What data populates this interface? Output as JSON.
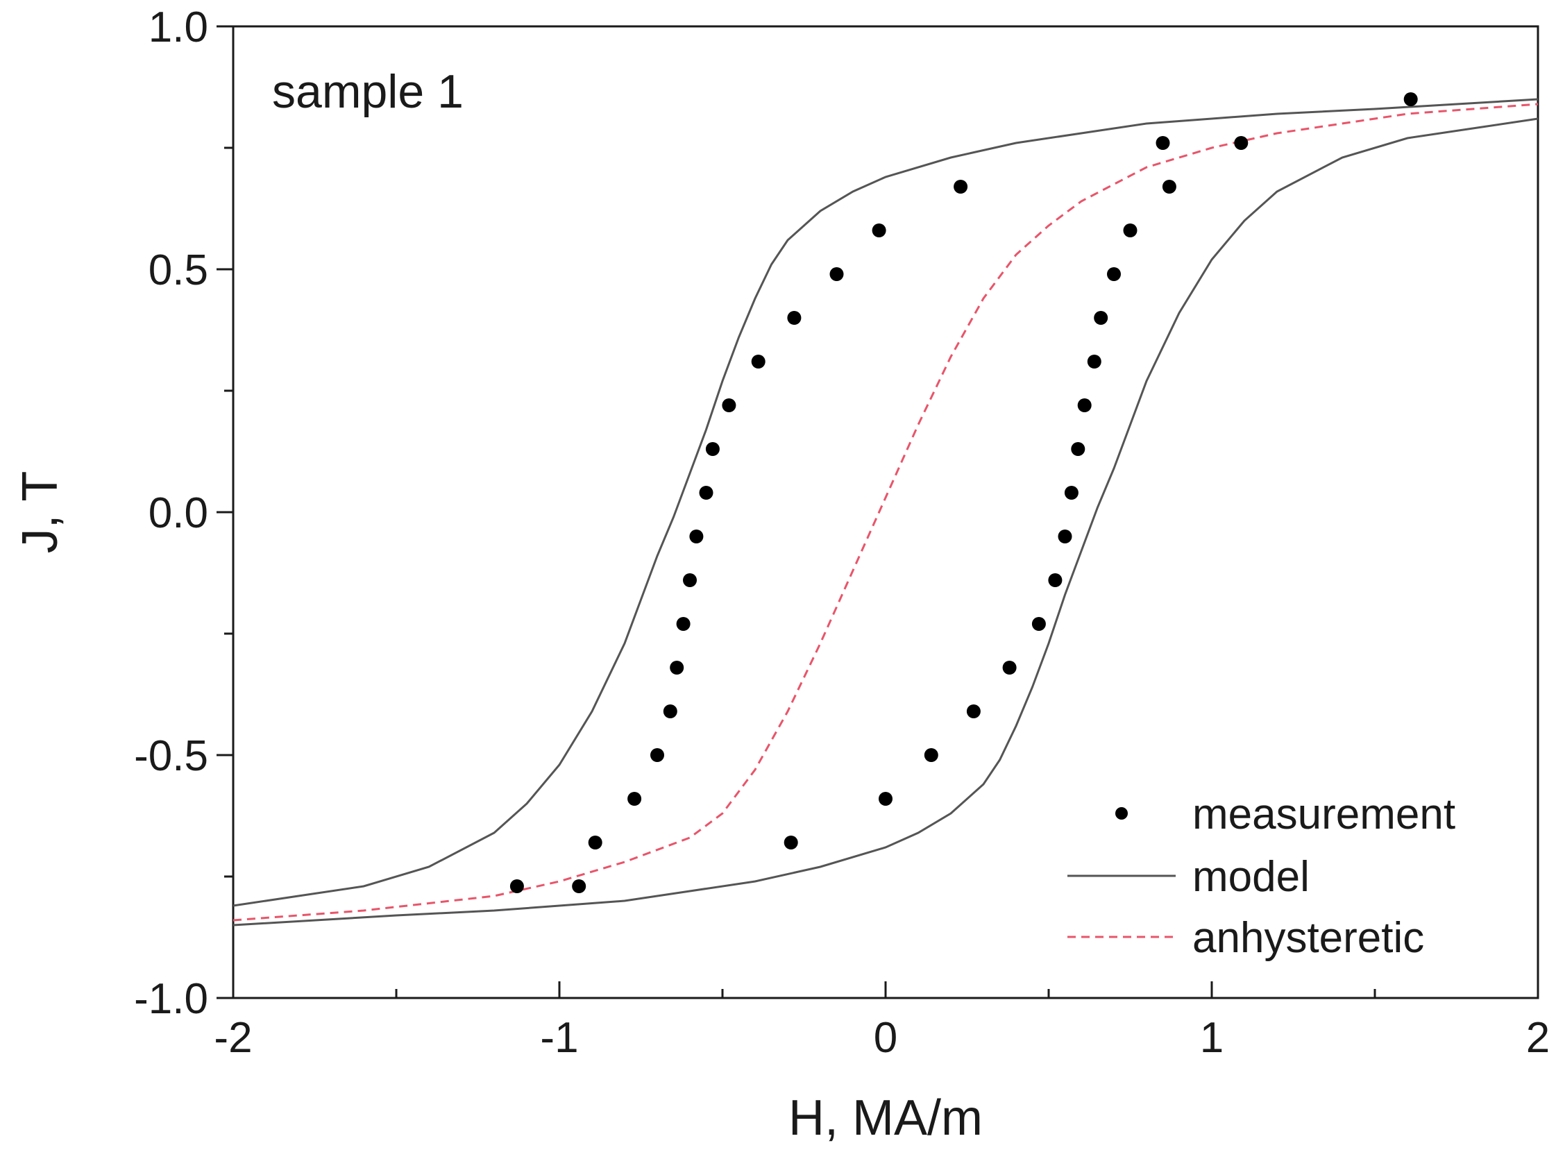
{
  "chart_data": {
    "type": "scatter",
    "title": "",
    "annotation": "sample 1",
    "xlabel": "H, MA/m",
    "ylabel": "J, T",
    "xlim": [
      -2,
      2
    ],
    "ylim": [
      -1.0,
      1.0
    ],
    "x_ticks": [
      -2,
      -1,
      0,
      1,
      2
    ],
    "x_tick_labels": [
      "-2",
      "-1",
      "0",
      "1",
      "2"
    ],
    "y_ticks": [
      -1.0,
      -0.5,
      0.0,
      0.5,
      1.0
    ],
    "y_tick_labels": [
      "-1.0",
      "-0.5",
      "0.0",
      "0.5",
      "1.0"
    ],
    "grid": false,
    "legend_position": "bottom-right",
    "series": [
      {
        "name": "measurement",
        "kind": "markers",
        "color": "#000000",
        "points": [
          [
            -1.13,
            -0.77
          ],
          [
            -0.94,
            -0.77
          ],
          [
            -0.89,
            -0.68
          ],
          [
            -0.77,
            -0.59
          ],
          [
            -0.7,
            -0.5
          ],
          [
            -0.66,
            -0.41
          ],
          [
            -0.64,
            -0.32
          ],
          [
            -0.62,
            -0.23
          ],
          [
            -0.6,
            -0.14
          ],
          [
            -0.58,
            -0.05
          ],
          [
            -0.55,
            0.04
          ],
          [
            -0.53,
            0.13
          ],
          [
            -0.48,
            0.22
          ],
          [
            -0.39,
            0.31
          ],
          [
            -0.28,
            0.4
          ],
          [
            -0.15,
            0.49
          ],
          [
            -0.02,
            0.58
          ],
          [
            0.23,
            0.67
          ],
          [
            0.85,
            0.76
          ],
          [
            1.61,
            0.85
          ],
          [
            1.09,
            0.76
          ],
          [
            0.87,
            0.67
          ],
          [
            0.75,
            0.58
          ],
          [
            0.7,
            0.49
          ],
          [
            0.66,
            0.4
          ],
          [
            0.64,
            0.31
          ],
          [
            0.61,
            0.22
          ],
          [
            0.59,
            0.13
          ],
          [
            0.57,
            0.04
          ],
          [
            0.55,
            -0.05
          ],
          [
            0.52,
            -0.14
          ],
          [
            0.47,
            -0.23
          ],
          [
            0.38,
            -0.32
          ],
          [
            0.27,
            -0.41
          ],
          [
            0.14,
            -0.5
          ],
          [
            0.0,
            -0.59
          ],
          [
            -0.29,
            -0.68
          ]
        ]
      },
      {
        "name": "model",
        "kind": "line",
        "color": "#555555",
        "branches": [
          {
            "label": "ascending",
            "x": [
              -2.0,
              -1.8,
              -1.6,
              -1.4,
              -1.2,
              -1.1,
              -1.0,
              -0.9,
              -0.8,
              -0.75,
              -0.7,
              -0.65,
              -0.6,
              -0.55,
              -0.5,
              -0.45,
              -0.4,
              -0.35,
              -0.3,
              -0.2,
              -0.1,
              0.0,
              0.2,
              0.4,
              0.6,
              0.8,
              1.0,
              1.2,
              1.5,
              2.0
            ],
            "y": [
              -0.81,
              -0.79,
              -0.77,
              -0.73,
              -0.66,
              -0.6,
              -0.52,
              -0.41,
              -0.27,
              -0.18,
              -0.09,
              -0.01,
              0.08,
              0.17,
              0.27,
              0.36,
              0.44,
              0.51,
              0.56,
              0.62,
              0.66,
              0.69,
              0.73,
              0.76,
              0.78,
              0.8,
              0.81,
              0.82,
              0.83,
              0.85
            ]
          },
          {
            "label": "descending",
            "x": [
              2.0,
              1.8,
              1.6,
              1.4,
              1.2,
              1.1,
              1.0,
              0.9,
              0.8,
              0.75,
              0.7,
              0.65,
              0.6,
              0.55,
              0.5,
              0.45,
              0.4,
              0.35,
              0.3,
              0.2,
              0.1,
              0.0,
              -0.2,
              -0.4,
              -0.6,
              -0.8,
              -1.0,
              -1.2,
              -1.5,
              -2.0
            ],
            "y": [
              0.81,
              0.79,
              0.77,
              0.73,
              0.66,
              0.6,
              0.52,
              0.41,
              0.27,
              0.18,
              0.09,
              0.01,
              -0.08,
              -0.17,
              -0.27,
              -0.36,
              -0.44,
              -0.51,
              -0.56,
              -0.62,
              -0.66,
              -0.69,
              -0.73,
              -0.76,
              -0.78,
              -0.8,
              -0.81,
              -0.82,
              -0.83,
              -0.85
            ]
          }
        ]
      },
      {
        "name": "anhysteretic",
        "kind": "dashed-line",
        "color": "#e8556a",
        "x": [
          -2.0,
          -1.6,
          -1.2,
          -1.0,
          -0.8,
          -0.6,
          -0.5,
          -0.4,
          -0.3,
          -0.2,
          -0.1,
          0.0,
          0.1,
          0.2,
          0.3,
          0.4,
          0.5,
          0.6,
          0.8,
          1.0,
          1.2,
          1.6,
          2.0
        ],
        "y": [
          -0.84,
          -0.82,
          -0.79,
          -0.76,
          -0.72,
          -0.67,
          -0.62,
          -0.53,
          -0.41,
          -0.27,
          -0.12,
          0.03,
          0.18,
          0.32,
          0.44,
          0.53,
          0.59,
          0.64,
          0.71,
          0.75,
          0.78,
          0.82,
          0.84
        ]
      }
    ]
  }
}
